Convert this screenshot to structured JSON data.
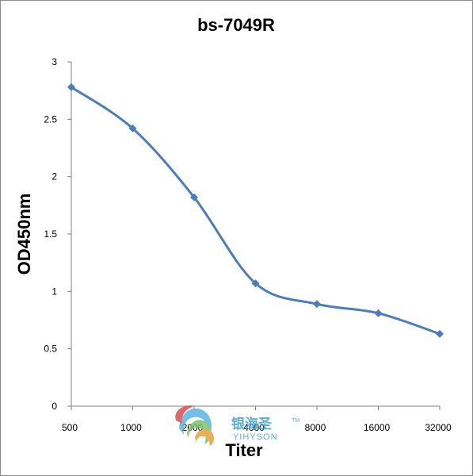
{
  "chart_data": {
    "type": "line",
    "title": "bs-7049R",
    "xlabel": "Titer",
    "ylabel": "OD450nm",
    "categories": [
      "500",
      "1000",
      "2000",
      "4000",
      "8000",
      "16000",
      "32000"
    ],
    "series": [
      {
        "values": [
          2.78,
          2.42,
          1.82,
          1.07,
          0.89,
          0.81,
          0.63
        ]
      }
    ],
    "ylim": [
      0,
      3
    ],
    "yticks": [
      "0",
      "0.5",
      "1",
      "1.5",
      "2",
      "2.5",
      "3"
    ],
    "grid": false,
    "line_color": "#4a7ebb",
    "marker": "diamond"
  },
  "watermark": {
    "brand_cn": "银海圣",
    "brand_en": "YIHYSON",
    "tm": "TM"
  }
}
